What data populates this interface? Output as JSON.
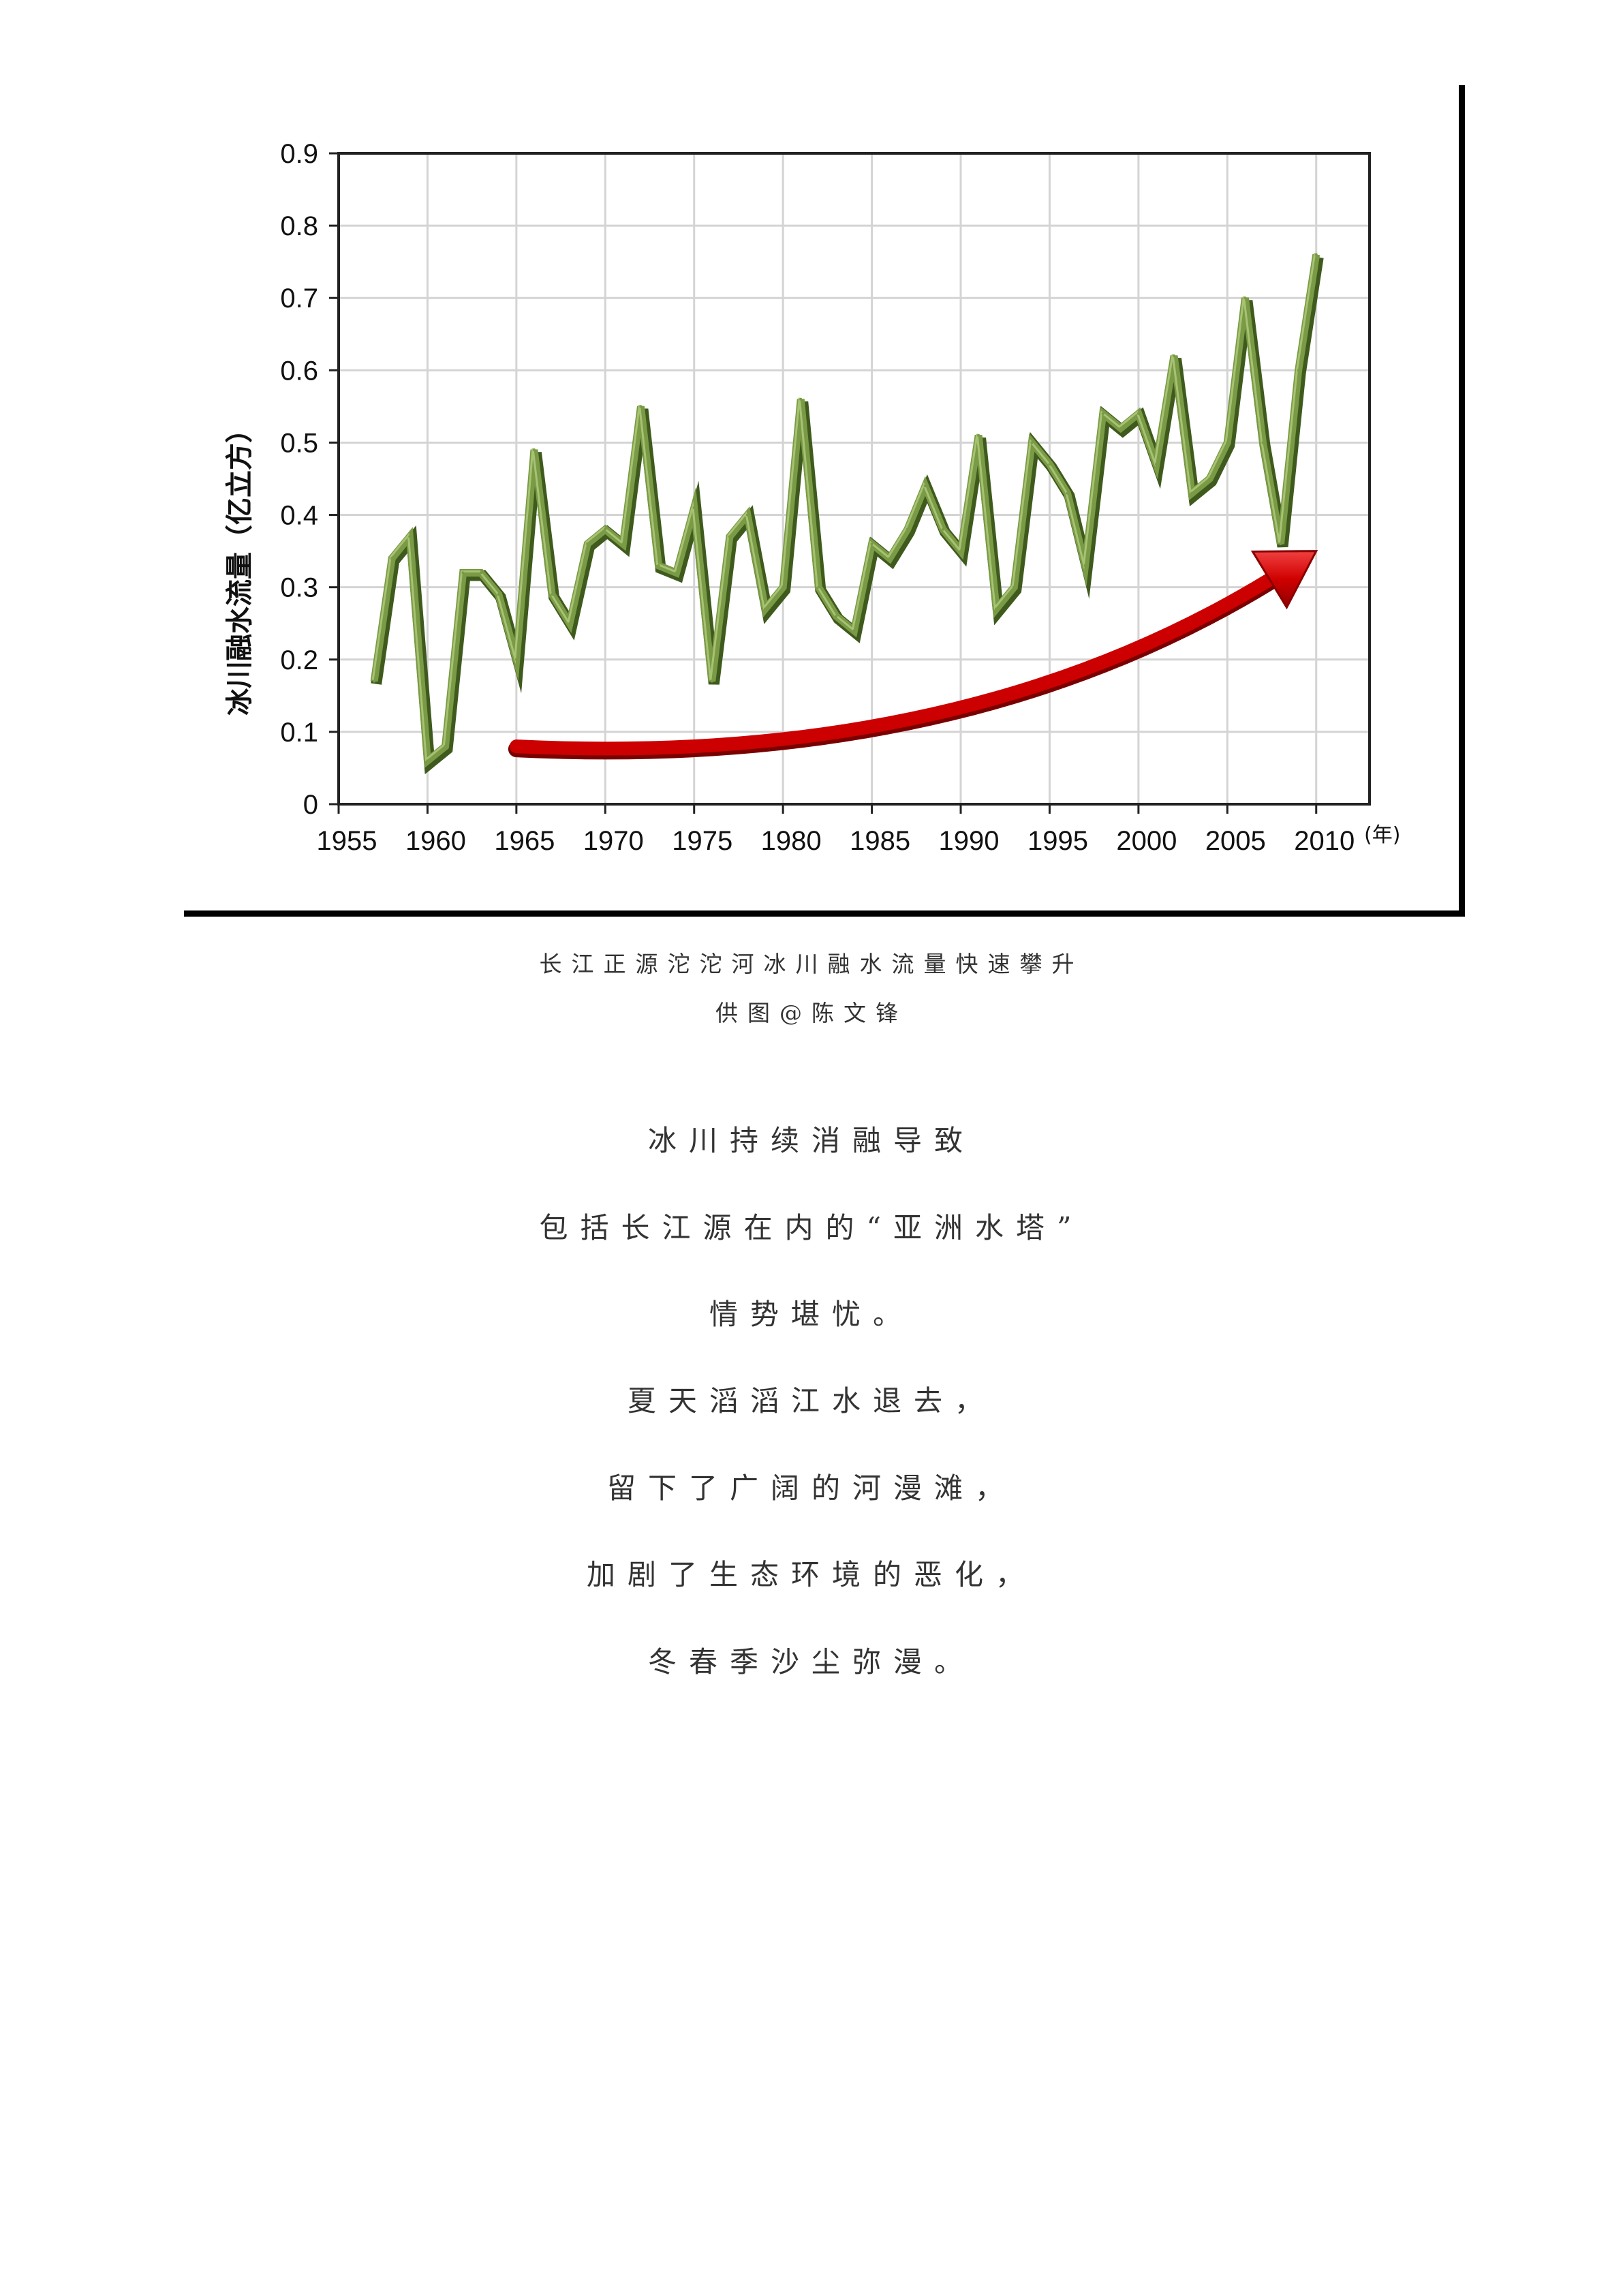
{
  "chart_data": {
    "type": "line",
    "ylabel": "冰川融水流量（亿立方）",
    "x_unit": "(年)",
    "xlim": [
      1955,
      2013
    ],
    "ylim": [
      0,
      0.9
    ],
    "x_ticks": [
      "1955",
      "1960",
      "1965",
      "1970",
      "1975",
      "1980",
      "1985",
      "1990",
      "1995",
      "2000",
      "2005",
      "2010"
    ],
    "y_ticks": [
      "0",
      "0.1",
      "0.2",
      "0.3",
      "0.4",
      "0.5",
      "0.6",
      "0.7",
      "0.8",
      "0.9"
    ],
    "grid": true,
    "series": [
      {
        "color": "#7a9a45",
        "x": [
          1957,
          1958,
          1959,
          1960,
          1961,
          1962,
          1963,
          1964,
          1965,
          1966,
          1967,
          1968,
          1969,
          1970,
          1971,
          1972,
          1973,
          1974,
          1975,
          1976,
          1977,
          1978,
          1979,
          1980,
          1981,
          1982,
          1983,
          1984,
          1985,
          1986,
          1987,
          1988,
          1989,
          1990,
          1991,
          1992,
          1993,
          1994,
          1995,
          1996,
          1997,
          1998,
          1999,
          2000,
          2001,
          2002,
          2003,
          2004,
          2005,
          2006,
          2007,
          2008,
          2009,
          2010
        ],
        "y": [
          0.17,
          0.34,
          0.37,
          0.06,
          0.08,
          0.32,
          0.32,
          0.29,
          0.2,
          0.49,
          0.29,
          0.25,
          0.36,
          0.38,
          0.36,
          0.55,
          0.33,
          0.32,
          0.41,
          0.17,
          0.37,
          0.4,
          0.27,
          0.3,
          0.56,
          0.3,
          0.26,
          0.24,
          0.36,
          0.34,
          0.38,
          0.44,
          0.38,
          0.35,
          0.51,
          0.27,
          0.3,
          0.5,
          0.47,
          0.43,
          0.33,
          0.54,
          0.52,
          0.54,
          0.47,
          0.62,
          0.43,
          0.45,
          0.5,
          0.7,
          0.5,
          0.36,
          0.6,
          0.76
        ]
      }
    ],
    "annotations": [
      {
        "type": "arrow",
        "color": "#cc0000",
        "from": [
          1965,
          0.08
        ],
        "control": [
          1990,
          0.05
        ],
        "to": [
          2010,
          0.35
        ]
      }
    ]
  },
  "captions": {
    "line1": "长江正源沱沱河冰川融水流量快速攀升",
    "line2": "供图@陈文锋"
  },
  "verses": [
    "冰川持续消融导致",
    "包括长江源在内的“亚洲水塔”",
    "情势堪忧。",
    "夏天滔滔江水退去，",
    "留下了广阔的河漫滩，",
    "加剧了生态环境的恶化，",
    "冬春季沙尘弥漫。"
  ]
}
